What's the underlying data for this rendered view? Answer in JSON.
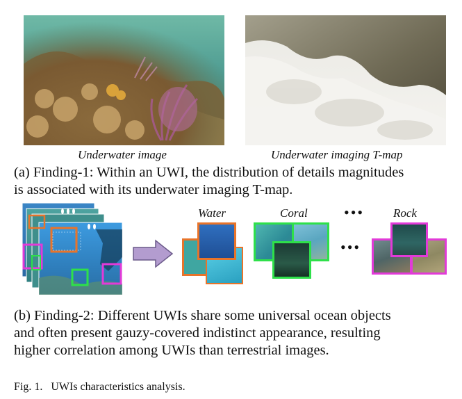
{
  "panel_a": {
    "left_caption": "Underwater image",
    "right_caption": "Underwater imaging T-map",
    "description_line1": "(a) Finding-1: Within an UWI,  the  distribution of details magnitudes",
    "description_line2": "is associated with its underwater imaging T-map."
  },
  "panel_b": {
    "label_water": "Water",
    "label_coral": "Coral",
    "label_rock": "Rock",
    "dots_top": "•••",
    "dots_mid": "•••",
    "description_line1": "(b) Finding-2: Different UWIs share some universal ocean objects",
    "description_line2": "and often present gauzy-covered indistinct appearance, resulting",
    "description_line3": "higher correlation among UWIs than terrestrial images."
  },
  "figure_caption": "Fig. 1.   UWIs characteristics analysis.",
  "colors": {
    "water_frame": "#e8742a",
    "coral_frame": "#2ee04a",
    "rock_frame": "#e23ad8",
    "arrow_fill": "#b39ccf",
    "arrow_stroke": "#6b5a8a"
  }
}
